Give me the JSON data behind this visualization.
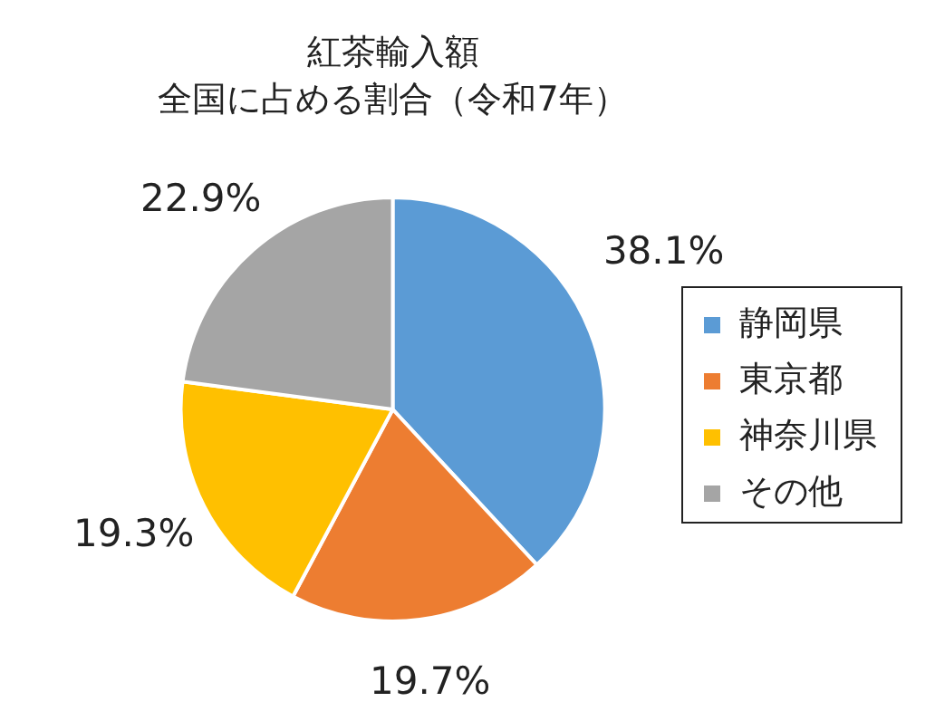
{
  "chart_data": {
    "type": "pie",
    "title": "紅茶輸入額",
    "subtitle": "全国に占める割合（令和7年）",
    "categories": [
      "静岡県",
      "東京都",
      "神奈川県",
      "その他"
    ],
    "values": [
      38.1,
      19.7,
      19.3,
      22.9
    ],
    "colors": [
      "#5b9bd5",
      "#ed7d31",
      "#ffc000",
      "#a5a5a5"
    ],
    "value_labels": [
      "38.1%",
      "19.7%",
      "19.3%",
      "22.9%"
    ],
    "legend": "right"
  }
}
